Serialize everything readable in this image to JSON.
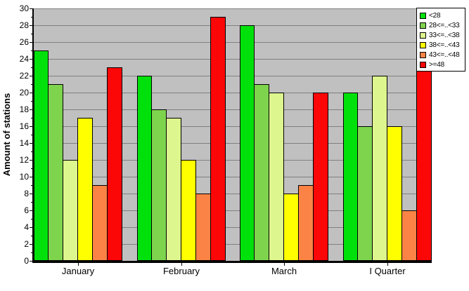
{
  "chart_data": {
    "type": "bar",
    "title": "",
    "ylabel": "Amount of stations",
    "xlabel": "",
    "categories": [
      "January",
      "February",
      "March",
      "I Quarter"
    ],
    "series": [
      {
        "name": "<28",
        "color": "#00E10C",
        "values": [
          25,
          22,
          28,
          20
        ]
      },
      {
        "name": "28<=..<33",
        "color": "#7FD44E",
        "values": [
          21,
          18,
          21,
          16
        ]
      },
      {
        "name": "33<=..<38",
        "color": "#DDF68E",
        "values": [
          12,
          17,
          20,
          22
        ]
      },
      {
        "name": "38<=..<43",
        "color": "#FFFF00",
        "values": [
          17,
          12,
          8,
          16
        ]
      },
      {
        "name": "43<=..<48",
        "color": "#FC8346",
        "values": [
          9,
          8,
          9,
          6
        ]
      },
      {
        "name": ">=48",
        "color": "#FB0707",
        "values": [
          23,
          29,
          20,
          24
        ]
      }
    ],
    "ylim": [
      0,
      30
    ],
    "yticks": [
      0,
      2,
      4,
      6,
      8,
      10,
      12,
      14,
      16,
      18,
      20,
      22,
      24,
      26,
      28,
      30
    ],
    "grid": true,
    "legend_position": "top-right",
    "plot_background": "#C0C0C0",
    "gridline_color": "#808080",
    "axis_color": "#000000"
  }
}
